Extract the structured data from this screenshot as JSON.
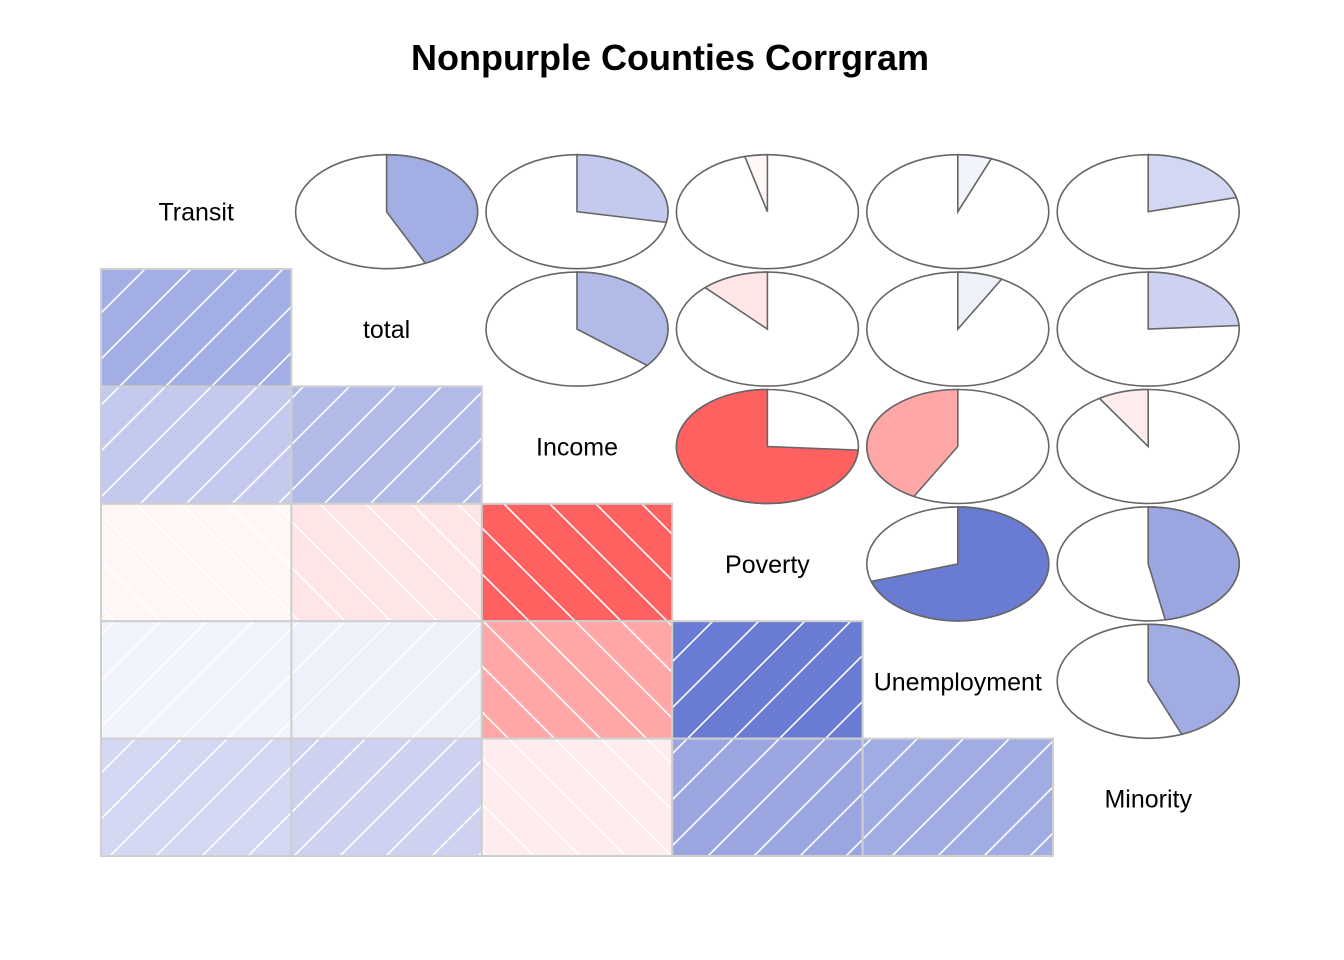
{
  "chart_data": {
    "type": "heatmap",
    "title": "Nonpurple Counties Corrgram",
    "variables": [
      "Transit",
      "total",
      "Income",
      "Poverty",
      "Unemployment",
      "Minority"
    ],
    "lower_panel": "shade",
    "upper_panel": "pie",
    "correlations": [
      [
        1.0,
        0.43,
        0.28,
        -0.04,
        0.06,
        0.21
      ],
      [
        0.43,
        1.0,
        0.36,
        -0.12,
        0.08,
        0.24
      ],
      [
        0.28,
        0.36,
        1.0,
        -0.74,
        -0.42,
        -0.09
      ],
      [
        -0.04,
        -0.12,
        -0.74,
        1.0,
        0.7,
        0.47
      ],
      [
        0.06,
        0.08,
        -0.42,
        0.7,
        1.0,
        0.44
      ],
      [
        0.21,
        0.24,
        -0.09,
        0.47,
        0.44,
        1.0
      ]
    ],
    "colors": {
      "negative": "#ff2a2a",
      "positive": "#2a42c0",
      "cell_border": "#cfcfcf",
      "pie_outline": "#666666",
      "hatch": "#ffffff"
    }
  }
}
